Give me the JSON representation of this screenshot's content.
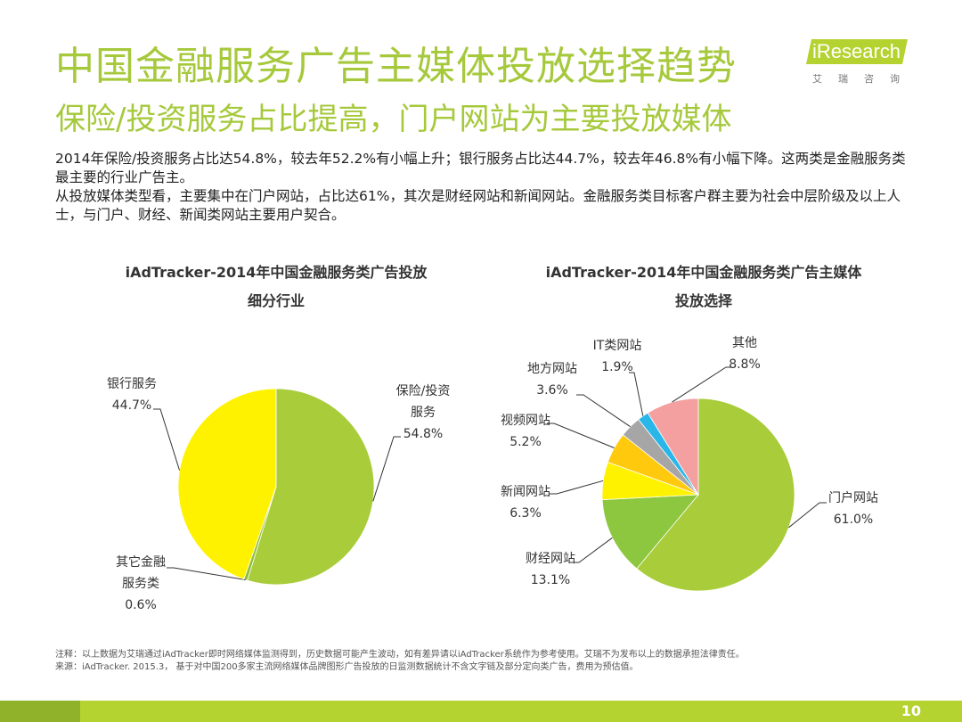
{
  "header": {
    "title": "中国金融服务广告主媒体投放选择趋势",
    "subtitle": "保险/投资服务占比提高，门户网站为主要投放媒体"
  },
  "logo": {
    "brand": "iResearch",
    "sub": "艾瑞咨询"
  },
  "intro": {
    "line1": "2014年保险/投资服务占比达54.8%，较去年52.2%有小幅上升；银行服务占比达44.7%，较去年46.8%有小幅下降。这两类是金融服务类最主要的行业广告主。",
    "line2": "从投放媒体类型看，主要集中在门户网站，占比达61%，其次是财经网站和新闻网站。金融服务类目标客户群主要为社会中层阶级及以上人士，与门户、财经、新闻类网站主要用户契合。"
  },
  "chart_data": [
    {
      "type": "pie",
      "title_line1": "iAdTracker-2014年中国金融服务类广告投放",
      "title_line2": "细分行业",
      "slices": [
        {
          "label": "保险/投资服务",
          "value": 54.8,
          "value_label": "54.8%",
          "color": "#a8cc3a"
        },
        {
          "label": "其它金融服务类",
          "value": 0.6,
          "value_label": "0.6%",
          "color": "#8fbf3a"
        },
        {
          "label": "银行服务",
          "value": 44.7,
          "value_label": "44.7%",
          "color": "#fff200"
        }
      ]
    },
    {
      "type": "pie",
      "title_line1": "iAdTracker-2014年中国金融服务类广告主媒体",
      "title_line2": "投放选择",
      "slices": [
        {
          "label": "门户网站",
          "value": 61.0,
          "value_label": "61.0%",
          "color": "#a8cc3a"
        },
        {
          "label": "财经网站",
          "value": 13.1,
          "value_label": "13.1%",
          "color": "#8dc63f"
        },
        {
          "label": "新闻网站",
          "value": 6.3,
          "value_label": "6.3%",
          "color": "#fff200"
        },
        {
          "label": "视频网站",
          "value": 5.2,
          "value_label": "5.2%",
          "color": "#ffc90e"
        },
        {
          "label": "地方网站",
          "value": 3.6,
          "value_label": "3.6%",
          "color": "#a6a6a6"
        },
        {
          "label": "IT类网站",
          "value": 1.9,
          "value_label": "1.9%",
          "color": "#29b6e8"
        },
        {
          "label": "其他",
          "value": 8.8,
          "value_label": "8.8%",
          "color": "#f4a0a0"
        }
      ]
    }
  ],
  "footnote": {
    "note": "注释：以上数据为艾瑞通过iAdTracker即时网络媒体监测得到，历史数据可能产生波动，如有差异请以iAdTracker系统作为参考使用。艾瑞不为发布以上的数据承担法律责任。",
    "source": "来源：iAdTracker. 2015.3， 基于对中国200多家主流网络媒体品牌图形广告投放的日监测数据统计不含文字链及部分定向类广告，费用为预估值。"
  },
  "page": {
    "number": "10"
  }
}
